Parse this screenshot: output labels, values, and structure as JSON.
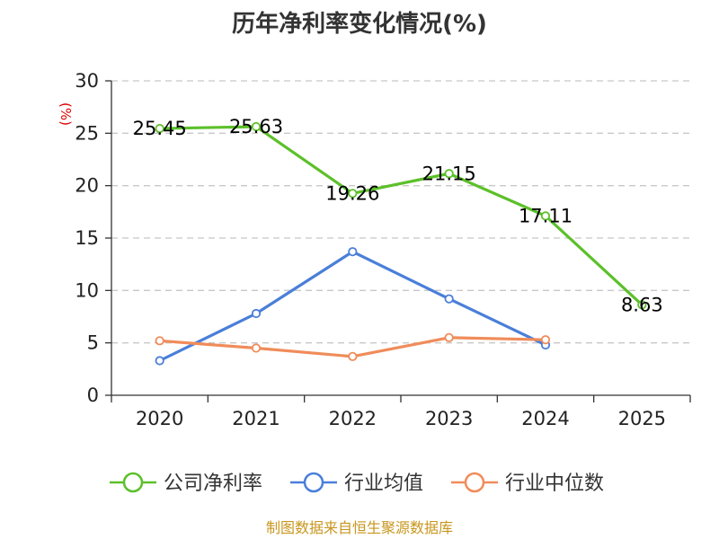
{
  "title": "历年净利率变化情况(%)",
  "unit_label": "(%)",
  "source": "制图数据来自恒生聚源数据库",
  "colors": {
    "grid": "#c8c8c8",
    "axis": "#333333",
    "source": "#c8961e"
  },
  "chart_data": {
    "type": "line",
    "title": "历年净利率变化情况(%)",
    "ylabel": "(%)",
    "xlabel": "",
    "categories": [
      "2020",
      "2021",
      "2022",
      "2023",
      "2024",
      "2025"
    ],
    "ylim": [
      0,
      30
    ],
    "yticks": [
      0,
      5,
      10,
      15,
      20,
      25,
      30
    ],
    "grid": true,
    "legend_position": "bottom",
    "series": [
      {
        "name": "公司净利率",
        "color": "#5cc02a",
        "values": [
          25.45,
          25.63,
          19.26,
          21.15,
          17.11,
          8.63
        ],
        "labels": [
          "25.45",
          "25.63",
          "19.26",
          "21.15",
          "17.11",
          "8.63"
        ]
      },
      {
        "name": "行业均值",
        "color": "#4a7fd9",
        "values": [
          3.3,
          7.8,
          13.7,
          9.2,
          4.8,
          null
        ]
      },
      {
        "name": "行业中位数",
        "color": "#f08c5a",
        "values": [
          5.2,
          4.5,
          3.7,
          5.5,
          5.3,
          null
        ]
      }
    ]
  }
}
